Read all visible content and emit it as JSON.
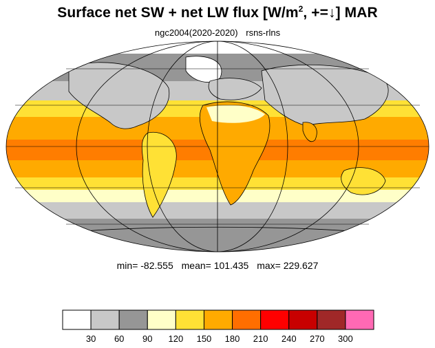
{
  "title": {
    "main": "Surface net SW + net LW flux [W/m",
    "sup": "2",
    "suffix": ", +=↓]  MAR"
  },
  "subtitle": {
    "model": "ngc2004(2020-2020)",
    "variable": "rsns-rlns"
  },
  "stats": {
    "min": "min= -82.555",
    "mean": "mean= 101.435",
    "max": "max= 229.627"
  },
  "colorbar": {
    "colors": [
      "#ffffff",
      "#c8c8c8",
      "#969696",
      "#ffffc8",
      "#ffe135",
      "#ffaa00",
      "#ff6e00",
      "#ff0000",
      "#c80000",
      "#a02828",
      "#ff69b4"
    ],
    "labels": [
      "30",
      "60",
      "90",
      "120",
      "150",
      "180",
      "210",
      "240",
      "270",
      "300"
    ]
  },
  "map": {
    "projection": "mollweide",
    "land_outline_color": "#000000",
    "bands": [
      {
        "lat_range": [
          60,
          90
        ],
        "color": "#ffffff"
      },
      {
        "lat_range": [
          40,
          60
        ],
        "color": "#969696"
      },
      {
        "lat_range": [
          30,
          40
        ],
        "color": "#c8c8c8"
      },
      {
        "lat_range": [
          20,
          30
        ],
        "color": "#ffe135"
      },
      {
        "lat_range": [
          -5,
          20
        ],
        "color": "#ffaa00"
      },
      {
        "lat_range": [
          -25,
          -5
        ],
        "color": "#ffaa00"
      },
      {
        "lat_range": [
          -35,
          -25
        ],
        "color": "#ffe135"
      },
      {
        "lat_range": [
          -45,
          -35
        ],
        "color": "#ffffc8"
      },
      {
        "lat_range": [
          -60,
          -45
        ],
        "color": "#c8c8c8"
      },
      {
        "lat_range": [
          -90,
          -60
        ],
        "color": "#969696"
      }
    ]
  }
}
